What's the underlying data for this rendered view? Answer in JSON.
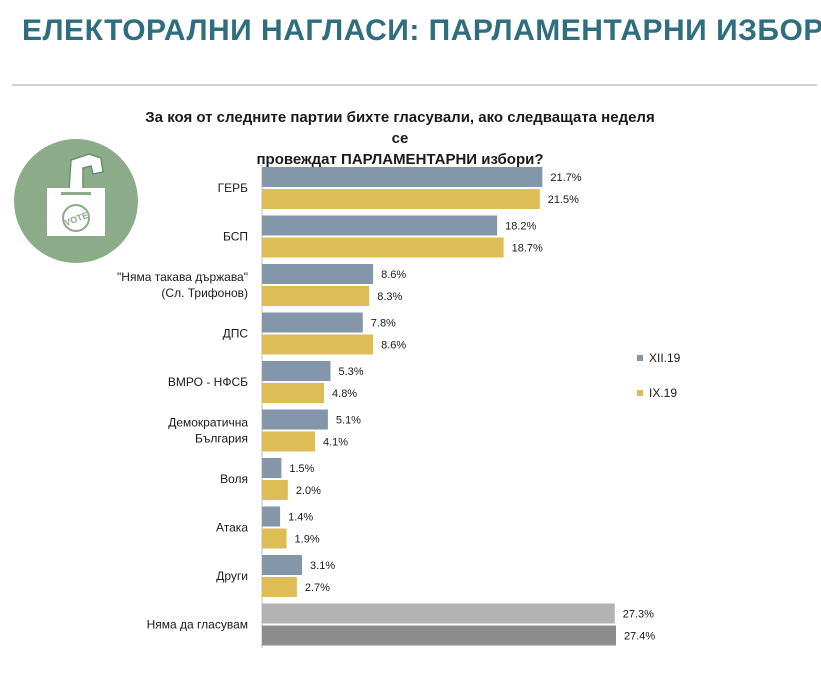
{
  "header": {
    "title": "ЕЛЕКТОРАЛНИ НАГЛАСИ: ПАРЛАМЕНТАРНИ ИЗБОРИ"
  },
  "question": {
    "line1": "За коя от следните партии бихте гласували, ако следващата неделя се",
    "line2": "провеждат ПАРЛАМЕНТАРНИ избори?"
  },
  "logo": {
    "icon": "ballot-box-icon",
    "text": "VOTE"
  },
  "colors": {
    "series_dec": "#8496aa",
    "series_sep": "#dfbd56",
    "no_vote_dec": "#b3b3b3",
    "no_vote_sep": "#8c8c8c",
    "logo_bg": "#8cab88"
  },
  "chart_data": {
    "type": "bar",
    "orientation": "horizontal",
    "title": "За коя от следните партии бихте гласували, ако следващата неделя се провеждат ПАРЛАМЕНТАРНИ избори?",
    "categories": [
      [
        "ГЕРБ"
      ],
      [
        "БСП"
      ],
      [
        "\"Няма такава държава\"",
        "(Сл. Трифонов)"
      ],
      [
        "ДПС"
      ],
      [
        "ВМРО - НФСБ"
      ],
      [
        "Демократична",
        "България"
      ],
      [
        "Воля"
      ],
      [
        "Атака"
      ],
      [
        "Други"
      ],
      [
        "Няма да гласувам"
      ]
    ],
    "series": [
      {
        "name": "XII.19",
        "values": [
          21.7,
          18.2,
          8.6,
          7.8,
          5.3,
          5.1,
          1.5,
          1.4,
          3.1,
          27.3
        ],
        "labels": [
          "21.7%",
          "18.2%",
          "8.6%",
          "7.8%",
          "5.3%",
          "5.1%",
          "1.5%",
          "1.4%",
          "3.1%",
          "27.3%"
        ]
      },
      {
        "name": "IX.19",
        "values": [
          21.5,
          18.7,
          8.3,
          8.6,
          4.8,
          4.1,
          2.0,
          1.9,
          2.7,
          27.4
        ],
        "labels": [
          "21.5%",
          "18.7%",
          "8.3%",
          "8.6%",
          "4.8%",
          "4.1%",
          "2.0%",
          "1.9%",
          "2.7%",
          "27.4%"
        ]
      }
    ],
    "unit": "%",
    "xlim": [
      0,
      28
    ],
    "legend_position": "right"
  }
}
